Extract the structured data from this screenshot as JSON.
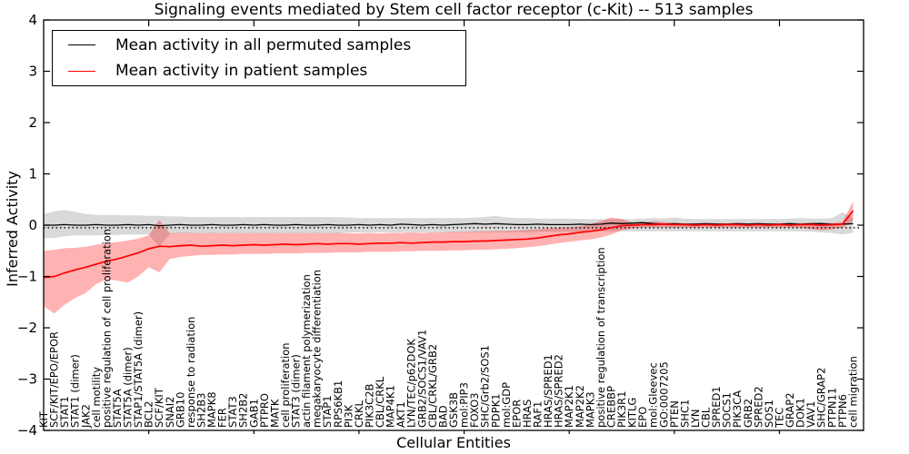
{
  "title": "Signaling events mediated by Stem cell factor receptor (c-Kit) -- 513 samples",
  "legend": [
    {
      "label": "Mean activity in all permuted samples",
      "color": "#000000"
    },
    {
      "label": "Mean activity in patient samples",
      "color": "#ff0000"
    }
  ],
  "chart_data": {
    "type": "line",
    "title": "Signaling events mediated by Stem cell factor receptor (c-Kit) -- 513 samples",
    "xlabel": "Cellular Entities",
    "ylabel": "Inferred Activity",
    "ylim": [
      -4,
      4
    ],
    "yticks": [
      -4,
      -3,
      -2,
      -1,
      0,
      1,
      2,
      3,
      4
    ],
    "grid": false,
    "legend_position": "upper left",
    "reference_line": {
      "value": -0.05,
      "style": "dotted",
      "color": "#000000"
    },
    "categories": [
      "KIT",
      "SCF/KIT/EPO/EPOR",
      "STAT1",
      "STAT1 (dimer)",
      "JAK2",
      "cell motility",
      "positive regulation of cell proliferation",
      "STAT5A",
      "STAT5A (dimer)",
      "STAP1/STAT5A (dimer)",
      "BCL2",
      "SCF/KIT",
      "SNAI2",
      "GRB10",
      "response to radiation",
      "SH2B3",
      "MAPK8",
      "FER",
      "STAT3",
      "SH2B2",
      "GAB1",
      "PTPRO",
      "MATK",
      "cell proliferation",
      "STAT3 (dimer)",
      "actin filament polymerization",
      "megakaryocyte differentiation",
      "STAP1",
      "RPS6KB1",
      "PI3K",
      "CRKL",
      "PIK3C2B",
      "CBL/CRKL",
      "MAP4K1",
      "AKT1",
      "LYN/TEC/p62DOK",
      "GRB2/SOCS1/VAV1",
      "CBL/CRKL/GRB2",
      "BAD",
      "GSK3B",
      "mol:PIP3",
      "FOXO3",
      "SHC/Grb2/SOS1",
      "PDPK1",
      "mol:GDP",
      "EPOR",
      "HRAS",
      "RAF1",
      "HRAS/SPRED1",
      "HRAS/SPRED2",
      "MAP2K1",
      "MAP2K2",
      "MAPK3",
      "positive regulation of transcription",
      "CREBBP",
      "PIK3R1",
      "KITLG",
      "EPO",
      "mol:Gleevec",
      "GO:0007205",
      "PTEN",
      "SHC1",
      "LYN",
      "CBL",
      "SPRED1",
      "SOCS1",
      "PIK3CA",
      "GRB2",
      "SPRED2",
      "SOS1",
      "TEC",
      "GRAP2",
      "DOK1",
      "VAV1",
      "SHC/GRAP2",
      "PTPN11",
      "PTPN6",
      "cell migration"
    ],
    "series": [
      {
        "name": "Mean activity in all permuted samples",
        "color": "#000000",
        "band_color": "rgba(0,0,0,0.15)",
        "values": [
          0,
          0,
          0.01,
          0,
          0,
          0.01,
          0,
          0,
          0.01,
          0,
          0.01,
          -0.01,
          0,
          0.01,
          0,
          0,
          0.01,
          0,
          0,
          0.01,
          0,
          0.01,
          0,
          0,
          0.01,
          0,
          0,
          0.01,
          0,
          0,
          0.01,
          0,
          0.01,
          0,
          0.02,
          0.01,
          0,
          0.01,
          0,
          0.01,
          0.02,
          0.03,
          0.02,
          0.03,
          0.02,
          0.01,
          0.01,
          0.02,
          0.01,
          0.01,
          0.01,
          0.02,
          0.01,
          0.02,
          0.04,
          0.03,
          0.04,
          0.05,
          0.03,
          0.02,
          0.03,
          0.02,
          0.02,
          0.03,
          0.02,
          0.02,
          0.03,
          0.02,
          0.03,
          0.02,
          0.02,
          0.03,
          0.02,
          0.03,
          0.03,
          0.02,
          0.02,
          0.03
        ],
        "band_upper": [
          0.22,
          0.27,
          0.3,
          0.26,
          0.22,
          0.2,
          0.2,
          0.2,
          0.19,
          0.19,
          0.18,
          0.18,
          0.17,
          0.17,
          0.16,
          0.16,
          0.16,
          0.16,
          0.16,
          0.16,
          0.16,
          0.16,
          0.16,
          0.16,
          0.16,
          0.16,
          0.16,
          0.16,
          0.16,
          0.15,
          0.14,
          0.14,
          0.14,
          0.14,
          0.14,
          0.14,
          0.14,
          0.14,
          0.14,
          0.14,
          0.14,
          0.15,
          0.16,
          0.18,
          0.15,
          0.14,
          0.14,
          0.13,
          0.13,
          0.13,
          0.13,
          0.12,
          0.12,
          0.12,
          0.12,
          0.12,
          0.12,
          0.13,
          0.14,
          0.13,
          0.15,
          0.13,
          0.12,
          0.12,
          0.12,
          0.12,
          0.12,
          0.12,
          0.12,
          0.12,
          0.12,
          0.13,
          0.14,
          0.13,
          0.13,
          0.14,
          0.25,
          0.15
        ],
        "band_lower": [
          -0.25,
          -0.25,
          -0.22,
          -0.2,
          -0.2,
          -0.2,
          -0.19,
          -0.19,
          -0.18,
          -0.18,
          -0.18,
          -0.42,
          -0.17,
          -0.16,
          -0.16,
          -0.16,
          -0.16,
          -0.16,
          -0.16,
          -0.16,
          -0.16,
          -0.16,
          -0.16,
          -0.16,
          -0.16,
          -0.16,
          -0.16,
          -0.16,
          -0.16,
          -0.15,
          -0.14,
          -0.14,
          -0.14,
          -0.14,
          -0.14,
          -0.14,
          -0.14,
          -0.14,
          -0.14,
          -0.14,
          -0.14,
          -0.14,
          -0.14,
          -0.14,
          -0.14,
          -0.14,
          -0.14,
          -0.13,
          -0.13,
          -0.13,
          -0.13,
          -0.12,
          -0.12,
          -0.12,
          -0.12,
          -0.12,
          -0.12,
          -0.12,
          -0.12,
          -0.12,
          -0.12,
          -0.12,
          -0.12,
          -0.12,
          -0.12,
          -0.12,
          -0.12,
          -0.12,
          -0.12,
          -0.12,
          -0.12,
          -0.12,
          -0.12,
          -0.13,
          -0.14,
          -0.15,
          -0.18,
          -0.15
        ]
      },
      {
        "name": "Mean activity in patient samples",
        "color": "#ff0000",
        "band_color": "rgba(255,0,0,0.3)",
        "values": [
          -1.02,
          -1.0,
          -0.93,
          -0.87,
          -0.82,
          -0.76,
          -0.7,
          -0.66,
          -0.6,
          -0.54,
          -0.46,
          -0.41,
          -0.42,
          -0.4,
          -0.39,
          -0.41,
          -0.4,
          -0.39,
          -0.4,
          -0.39,
          -0.38,
          -0.39,
          -0.38,
          -0.37,
          -0.38,
          -0.37,
          -0.36,
          -0.37,
          -0.36,
          -0.36,
          -0.37,
          -0.36,
          -0.35,
          -0.35,
          -0.34,
          -0.35,
          -0.34,
          -0.33,
          -0.33,
          -0.32,
          -0.32,
          -0.31,
          -0.31,
          -0.3,
          -0.29,
          -0.28,
          -0.27,
          -0.25,
          -0.22,
          -0.19,
          -0.17,
          -0.14,
          -0.12,
          -0.09,
          -0.05,
          -0.01,
          0.0,
          0.01,
          0.01,
          0.02,
          0.01,
          0.01,
          0.0,
          0.01,
          0.0,
          0.01,
          0.01,
          0.0,
          0.01,
          0.0,
          0.01,
          0.0,
          0.01,
          0.01,
          0.0,
          0.01,
          0.02,
          0.28
        ],
        "band_upper": [
          -0.5,
          -0.48,
          -0.45,
          -0.44,
          -0.42,
          -0.38,
          -0.35,
          -0.33,
          -0.3,
          -0.26,
          -0.2,
          0.1,
          -0.16,
          -0.15,
          -0.15,
          -0.16,
          -0.15,
          -0.16,
          -0.15,
          -0.16,
          -0.15,
          -0.16,
          -0.15,
          -0.16,
          -0.15,
          -0.16,
          -0.15,
          -0.16,
          -0.15,
          -0.16,
          -0.16,
          -0.15,
          -0.16,
          -0.15,
          -0.15,
          -0.14,
          -0.15,
          -0.14,
          -0.14,
          -0.13,
          -0.13,
          -0.12,
          -0.12,
          -0.11,
          -0.11,
          -0.1,
          -0.09,
          -0.08,
          -0.06,
          -0.05,
          -0.04,
          -0.02,
          0.02,
          0.08,
          0.15,
          0.12,
          0.05,
          0.05,
          0.08,
          0.06,
          0.04,
          0.04,
          0.04,
          0.04,
          0.04,
          0.04,
          0.04,
          0.04,
          0.04,
          0.04,
          0.04,
          0.04,
          0.04,
          0.04,
          0.05,
          0.04,
          0.06,
          0.47
        ],
        "band_lower": [
          -1.58,
          -1.72,
          -1.55,
          -1.42,
          -1.32,
          -1.15,
          -1.05,
          -1.08,
          -1.12,
          -1.0,
          -0.82,
          -0.92,
          -0.66,
          -0.62,
          -0.6,
          -0.58,
          -0.58,
          -0.57,
          -0.57,
          -0.56,
          -0.56,
          -0.56,
          -0.55,
          -0.55,
          -0.55,
          -0.54,
          -0.54,
          -0.54,
          -0.53,
          -0.53,
          -0.53,
          -0.52,
          -0.52,
          -0.52,
          -0.51,
          -0.51,
          -0.5,
          -0.5,
          -0.5,
          -0.49,
          -0.49,
          -0.48,
          -0.48,
          -0.47,
          -0.46,
          -0.45,
          -0.43,
          -0.41,
          -0.38,
          -0.35,
          -0.32,
          -0.3,
          -0.28,
          -0.24,
          -0.18,
          -0.1,
          -0.06,
          -0.04,
          -0.04,
          -0.04,
          -0.05,
          -0.04,
          -0.05,
          -0.04,
          -0.05,
          -0.04,
          -0.05,
          -0.04,
          -0.05,
          -0.04,
          -0.05,
          -0.04,
          -0.05,
          -0.08,
          -0.1,
          -0.08,
          -0.05,
          0.08
        ]
      }
    ]
  }
}
